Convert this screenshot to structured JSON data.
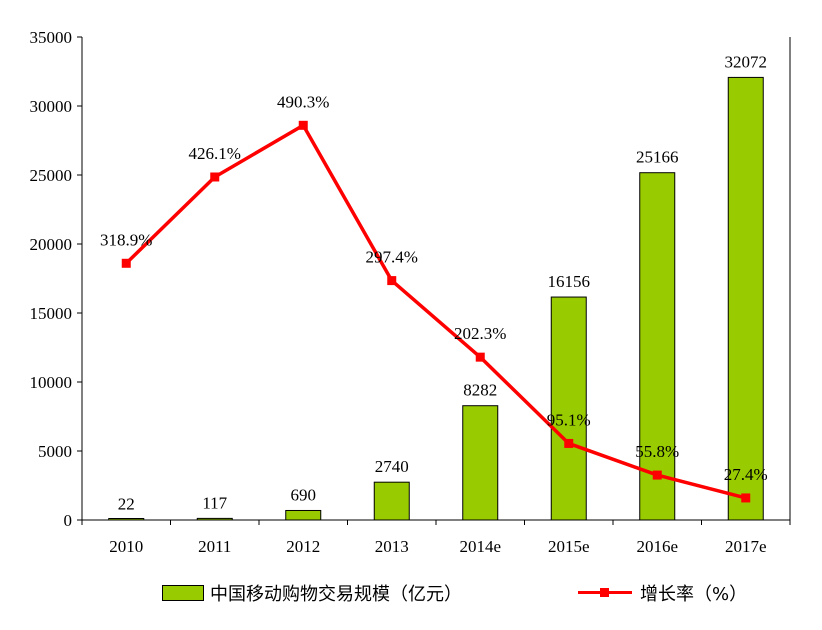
{
  "chart_data": {
    "type": "bar",
    "categories": [
      "2010",
      "2011",
      "2012",
      "2013",
      "2014e",
      "2015e",
      "2016e",
      "2017e"
    ],
    "series": [
      {
        "name": "中国移动购物交易规模（亿元）",
        "type": "bar",
        "axis": "left",
        "color": "#99cc00",
        "values": [
          22,
          117,
          690,
          2740,
          8282,
          16156,
          25166,
          32072
        ],
        "labels": [
          "22",
          "117",
          "690",
          "2740",
          "8282",
          "16156",
          "25166",
          "32072"
        ]
      },
      {
        "name": "增长率（%）",
        "type": "line",
        "color": "#ff0000",
        "values": [
          318.9,
          426.1,
          490.3,
          297.4,
          202.3,
          95.1,
          55.8,
          27.4
        ],
        "labels": [
          "318.9%",
          "426.1%",
          "490.3%",
          "297.4%",
          "202.3%",
          "95.1%",
          "55.8%",
          "27.4%"
        ]
      }
    ],
    "yaxis": {
      "ylim": [
        0,
        35000
      ],
      "ticks": [
        "0",
        "5000",
        "10000",
        "15000",
        "20000",
        "25000",
        "30000",
        "35000"
      ]
    },
    "y2lim": [
      0,
      600
    ],
    "grid": false,
    "legend": "bottom"
  }
}
